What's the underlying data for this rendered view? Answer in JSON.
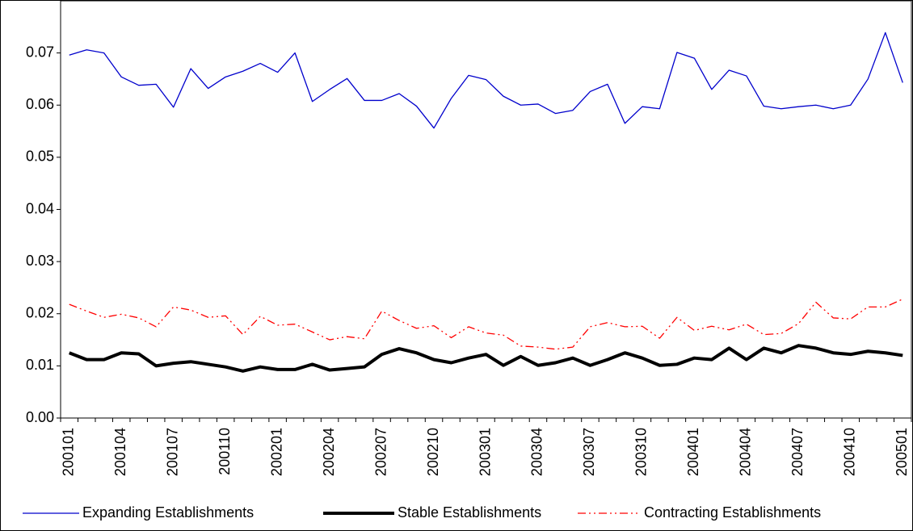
{
  "chart_data": {
    "type": "line",
    "categories": [
      "200101",
      null,
      null,
      "200104",
      null,
      null,
      "200107",
      null,
      null,
      "200110",
      null,
      null,
      "200201",
      null,
      null,
      "200204",
      null,
      null,
      "200207",
      null,
      null,
      "200210",
      null,
      null,
      "200301",
      null,
      null,
      "200304",
      null,
      null,
      "200307",
      null,
      null,
      "200310",
      null,
      null,
      "200401",
      null,
      null,
      "200404",
      null,
      null,
      "200407",
      null,
      null,
      "200410",
      null,
      null,
      "200501"
    ],
    "series": [
      {
        "name": "Expanding Establishments",
        "color": "#0000cc",
        "width": 1.3,
        "dash": "",
        "values": [
          0.0696,
          0.0706,
          0.07,
          0.0654,
          0.0638,
          0.064,
          0.0596,
          0.067,
          0.0632,
          0.0654,
          0.0665,
          0.068,
          0.0663,
          0.07,
          0.0607,
          0.063,
          0.0651,
          0.0609,
          0.0609,
          0.0622,
          0.0598,
          0.0556,
          0.0613,
          0.0657,
          0.0649,
          0.0617,
          0.06,
          0.0602,
          0.0584,
          0.059,
          0.0626,
          0.064,
          0.0565,
          0.0597,
          0.0593,
          0.0701,
          0.069,
          0.063,
          0.0667,
          0.0656,
          0.0598,
          0.0593,
          0.0597,
          0.06,
          0.0593,
          0.06,
          0.065,
          0.0739,
          0.0643
        ]
      },
      {
        "name": "Stable Establishments",
        "color": "#000000",
        "width": 4,
        "dash": "",
        "values": [
          0.0125,
          0.0112,
          0.0112,
          0.0125,
          0.0123,
          0.01,
          0.0105,
          0.0108,
          0.0103,
          0.0098,
          0.009,
          0.0098,
          0.0093,
          0.0093,
          0.0103,
          0.0092,
          0.0095,
          0.0098,
          0.0122,
          0.0133,
          0.0125,
          0.0112,
          0.0106,
          0.0115,
          0.0122,
          0.0101,
          0.0118,
          0.0101,
          0.0106,
          0.0115,
          0.0101,
          0.0112,
          0.0125,
          0.0115,
          0.0101,
          0.0103,
          0.0115,
          0.0112,
          0.0134,
          0.0112,
          0.0134,
          0.0125,
          0.0139,
          0.0134,
          0.0125,
          0.0122,
          0.0128,
          0.0125,
          0.012
        ]
      },
      {
        "name": "Contracting Establishments",
        "color": "#ff0000",
        "width": 1.3,
        "dash": "10 4 2 4 2 4",
        "values": [
          0.0218,
          0.0205,
          0.0193,
          0.0199,
          0.0192,
          0.0175,
          0.0213,
          0.0207,
          0.0193,
          0.0196,
          0.016,
          0.0195,
          0.0178,
          0.018,
          0.0165,
          0.015,
          0.0156,
          0.0152,
          0.0205,
          0.0187,
          0.0172,
          0.0177,
          0.0154,
          0.0175,
          0.0163,
          0.0159,
          0.0138,
          0.0136,
          0.0132,
          0.0136,
          0.0175,
          0.0183,
          0.0175,
          0.0176,
          0.0153,
          0.0193,
          0.0168,
          0.0176,
          0.0169,
          0.018,
          0.016,
          0.0162,
          0.0181,
          0.0222,
          0.0192,
          0.019,
          0.0213,
          0.0213,
          0.0228
        ]
      }
    ],
    "ylim": [
      0,
      0.08
    ],
    "yticks": [
      {
        "value": 0,
        "label": "0.00"
      },
      0.01,
      0.02,
      0.03,
      0.04,
      0.05,
      0.06,
      0.07
    ],
    "legend": "bottom"
  }
}
